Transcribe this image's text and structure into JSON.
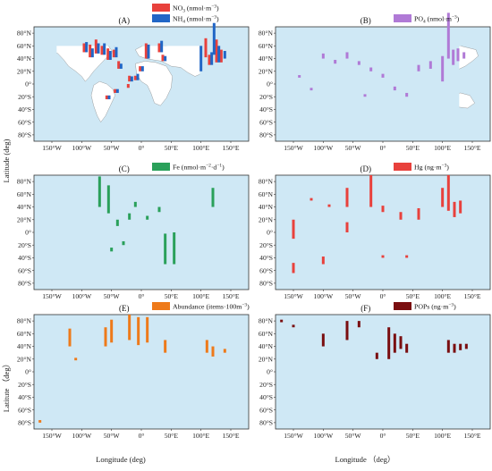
{
  "figure": {
    "y_axis_label": "Latitude (deg)",
    "y_axis_label_bottom": "Latitute （deg）",
    "x_axis_label": "Longitude (deg)",
    "x_axis_label_right": "Longitude （deg）"
  },
  "colors": {
    "ocean": "#cfe8f5",
    "land": "#ffffff",
    "border": "#8a8a8a",
    "frame": "#333333"
  },
  "chart_data": [
    {
      "type": "bar",
      "panel": "(A)",
      "xlim": [
        -180,
        180
      ],
      "ylim": [
        -90,
        90
      ],
      "x_ticks": [
        "150°W",
        "100°W",
        "50°W",
        "0°",
        "50°E",
        "100°E",
        "150°E"
      ],
      "y_ticks": [
        "80°N",
        "60°N",
        "40°N",
        "20°N",
        "0°",
        "20°S",
        "40°S",
        "60°S",
        "80°S"
      ],
      "series": [
        {
          "name": "NO",
          "sub": "3",
          "unit": " (nmol·m",
          "sup": "−3",
          "unit_end": ")",
          "color": "#e8413c",
          "bars": [
            {
              "lon": -96,
              "lat": 50,
              "h": 14
            },
            {
              "lon": -86,
              "lat": 42,
              "h": 20
            },
            {
              "lon": -76,
              "lat": 48,
              "h": 22
            },
            {
              "lon": -66,
              "lat": 46,
              "h": 14
            },
            {
              "lon": -56,
              "lat": 38,
              "h": 18
            },
            {
              "lon": -46,
              "lat": 42,
              "h": 12
            },
            {
              "lon": -38,
              "lat": 24,
              "h": 12
            },
            {
              "lon": -20,
              "lat": 4,
              "h": 9
            },
            {
              "lon": -10,
              "lat": 6,
              "h": 7
            },
            {
              "lon": -2,
              "lat": 20,
              "h": 8
            },
            {
              "lon": 8,
              "lat": 40,
              "h": 24
            },
            {
              "lon": 30,
              "lat": 50,
              "h": 14
            },
            {
              "lon": 36,
              "lat": 36,
              "h": 10
            },
            {
              "lon": 108,
              "lat": 42,
              "h": 30
            },
            {
              "lon": 114,
              "lat": 30,
              "h": 16
            },
            {
              "lon": 126,
              "lat": 34,
              "h": 36
            },
            {
              "lon": 134,
              "lat": 34,
              "h": 20
            },
            {
              "lon": -58,
              "lat": -24,
              "h": 6
            },
            {
              "lon": -44,
              "lat": -14,
              "h": 6
            },
            {
              "lon": -22,
              "lat": -6,
              "h": 6
            }
          ]
        },
        {
          "name": "NH",
          "sub": "4",
          "unit": " (nmol·m",
          "sup": "−3",
          "unit_end": ")",
          "color": "#2166c6",
          "bars": [
            {
              "lon": -92,
              "lat": 50,
              "h": 16
            },
            {
              "lon": -82,
              "lat": 42,
              "h": 14
            },
            {
              "lon": -72,
              "lat": 48,
              "h": 16
            },
            {
              "lon": -62,
              "lat": 46,
              "h": 18
            },
            {
              "lon": -52,
              "lat": 38,
              "h": 14
            },
            {
              "lon": -42,
              "lat": 42,
              "h": 16
            },
            {
              "lon": -34,
              "lat": 24,
              "h": 8
            },
            {
              "lon": -16,
              "lat": 4,
              "h": 8
            },
            {
              "lon": -6,
              "lat": 6,
              "h": 10
            },
            {
              "lon": 2,
              "lat": 20,
              "h": 8
            },
            {
              "lon": 12,
              "lat": 40,
              "h": 22
            },
            {
              "lon": 34,
              "lat": 50,
              "h": 18
            },
            {
              "lon": 40,
              "lat": 36,
              "h": 8
            },
            {
              "lon": 100,
              "lat": 20,
              "h": 40
            },
            {
              "lon": 118,
              "lat": 30,
              "h": 20
            },
            {
              "lon": 122,
              "lat": 46,
              "h": 50
            },
            {
              "lon": 130,
              "lat": 34,
              "h": 26
            },
            {
              "lon": 140,
              "lat": 40,
              "h": 12
            },
            {
              "lon": -54,
              "lat": -24,
              "h": 6
            },
            {
              "lon": -40,
              "lat": -14,
              "h": 6
            }
          ]
        }
      ]
    },
    {
      "type": "bar",
      "panel": "(B)",
      "xlim": [
        -180,
        180
      ],
      "ylim": [
        -90,
        90
      ],
      "x_ticks": [
        "150°W",
        "100°W",
        "50°W",
        "0°",
        "50°E",
        "100°E",
        "150°E"
      ],
      "y_ticks": [
        "80°N",
        "60°N",
        "40°N",
        "20°N",
        "0°",
        "20°S",
        "40°S",
        "60°S",
        "80°S"
      ],
      "series": [
        {
          "name": "PO",
          "sub": "4",
          "unit": " (nmol·m",
          "sup": "−3",
          "unit_end": ")",
          "color": "#b07ad6",
          "bars": [
            {
              "lon": -100,
              "lat": 40,
              "h": 8
            },
            {
              "lon": -80,
              "lat": 32,
              "h": 6
            },
            {
              "lon": -60,
              "lat": 40,
              "h": 10
            },
            {
              "lon": -40,
              "lat": 30,
              "h": 6
            },
            {
              "lon": -20,
              "lat": 20,
              "h": 6
            },
            {
              "lon": 0,
              "lat": 10,
              "h": 6
            },
            {
              "lon": 20,
              "lat": -10,
              "h": 6
            },
            {
              "lon": 40,
              "lat": -20,
              "h": 6
            },
            {
              "lon": 60,
              "lat": 20,
              "h": 10
            },
            {
              "lon": 80,
              "lat": 24,
              "h": 12
            },
            {
              "lon": 100,
              "lat": 4,
              "h": 40
            },
            {
              "lon": 110,
              "lat": 40,
              "h": 72
            },
            {
              "lon": 118,
              "lat": 30,
              "h": 24
            },
            {
              "lon": 126,
              "lat": 36,
              "h": 20
            },
            {
              "lon": 136,
              "lat": 40,
              "h": 10
            },
            {
              "lon": -120,
              "lat": -10,
              "h": 4
            },
            {
              "lon": -140,
              "lat": 10,
              "h": 4
            },
            {
              "lon": -30,
              "lat": -20,
              "h": 4
            }
          ]
        }
      ]
    },
    {
      "type": "bar",
      "panel": "(C)",
      "xlim": [
        -180,
        180
      ],
      "ylim": [
        -90,
        90
      ],
      "x_ticks": [
        "150°W",
        "100°W",
        "50°W",
        "0°",
        "50°E",
        "100°E",
        "150°E"
      ],
      "y_ticks": [
        "80°N",
        "60°N",
        "40°N",
        "20°N",
        "0°",
        "20°S",
        "40°S",
        "60°S",
        "80°S"
      ],
      "series": [
        {
          "name": "Fe",
          "unit": " (nmol·m",
          "sup": "−2",
          "unit_end": "·d",
          "sup2": "−1",
          "unit_end2": ")",
          "color": "#2aa05a",
          "bars": [
            {
              "lon": -70,
              "lat": 40,
              "h": 48
            },
            {
              "lon": -55,
              "lat": 30,
              "h": 44
            },
            {
              "lon": -40,
              "lat": 10,
              "h": 10
            },
            {
              "lon": -20,
              "lat": 20,
              "h": 10
            },
            {
              "lon": -10,
              "lat": 40,
              "h": 8
            },
            {
              "lon": 40,
              "lat": -50,
              "h": 48
            },
            {
              "lon": 55,
              "lat": -50,
              "h": 50
            },
            {
              "lon": 120,
              "lat": 40,
              "h": 30
            },
            {
              "lon": -30,
              "lat": -20,
              "h": 6
            },
            {
              "lon": -50,
              "lat": -30,
              "h": 6
            },
            {
              "lon": 10,
              "lat": 20,
              "h": 6
            },
            {
              "lon": 30,
              "lat": 32,
              "h": 8
            }
          ]
        }
      ]
    },
    {
      "type": "bar",
      "panel": "(D)",
      "xlim": [
        -180,
        180
      ],
      "ylim": [
        -90,
        90
      ],
      "x_ticks": [
        "150°W",
        "100°W",
        "50°W",
        "0°",
        "50°E",
        "100°E",
        "150°E"
      ],
      "y_ticks": [
        "80°N",
        "60°N",
        "40°N",
        "20°N",
        "0°",
        "20°S",
        "40°S",
        "60°S",
        "80°S"
      ],
      "series": [
        {
          "name": "Hg",
          "unit": " (ng·m",
          "sup": "−3",
          "unit_end": ")",
          "color": "#e8413c",
          "bars": [
            {
              "lon": -150,
              "lat": -10,
              "h": 30
            },
            {
              "lon": -150,
              "lat": -64,
              "h": 16
            },
            {
              "lon": -100,
              "lat": -50,
              "h": 12
            },
            {
              "lon": -60,
              "lat": 0,
              "h": 16
            },
            {
              "lon": -60,
              "lat": 40,
              "h": 30
            },
            {
              "lon": -20,
              "lat": 40,
              "h": 50
            },
            {
              "lon": 0,
              "lat": 32,
              "h": 10
            },
            {
              "lon": 30,
              "lat": 20,
              "h": 12
            },
            {
              "lon": 60,
              "lat": 20,
              "h": 18
            },
            {
              "lon": 100,
              "lat": 40,
              "h": 30
            },
            {
              "lon": 110,
              "lat": 34,
              "h": 56
            },
            {
              "lon": 120,
              "lat": 24,
              "h": 24
            },
            {
              "lon": 130,
              "lat": 30,
              "h": 20
            },
            {
              "lon": -120,
              "lat": 50,
              "h": 4
            },
            {
              "lon": -90,
              "lat": 40,
              "h": 4
            },
            {
              "lon": 0,
              "lat": -40,
              "h": 4
            },
            {
              "lon": 40,
              "lat": -40,
              "h": 4
            }
          ]
        }
      ]
    },
    {
      "type": "bar",
      "panel": "(E)",
      "xlim": [
        -180,
        180
      ],
      "ylim": [
        -90,
        90
      ],
      "x_ticks": [
        "150°W",
        "100°W",
        "50°W",
        "0°",
        "50°E",
        "100°E",
        "150°E"
      ],
      "y_ticks": [
        "80°N",
        "60°N",
        "40°N",
        "20°N",
        "0°",
        "20°S",
        "40°S",
        "60°S",
        "80°S"
      ],
      "series": [
        {
          "name": "Abundance",
          "unit": " (items·100m",
          "sup": "−3",
          "unit_end": ")",
          "color": "#ee7a1a",
          "bars": [
            {
              "lon": -120,
              "lat": 40,
              "h": 28
            },
            {
              "lon": -60,
              "lat": 40,
              "h": 30
            },
            {
              "lon": -50,
              "lat": 46,
              "h": 36
            },
            {
              "lon": -20,
              "lat": 50,
              "h": 40
            },
            {
              "lon": -5,
              "lat": 42,
              "h": 44
            },
            {
              "lon": 10,
              "lat": 46,
              "h": 40
            },
            {
              "lon": 40,
              "lat": 30,
              "h": 20
            },
            {
              "lon": 110,
              "lat": 30,
              "h": 20
            },
            {
              "lon": 120,
              "lat": 24,
              "h": 16
            },
            {
              "lon": -110,
              "lat": 18,
              "h": 4
            },
            {
              "lon": -170,
              "lat": -80,
              "h": 4
            },
            {
              "lon": 140,
              "lat": 30,
              "h": 6
            }
          ]
        }
      ]
    },
    {
      "type": "bar",
      "panel": "(F)",
      "xlim": [
        -180,
        180
      ],
      "ylim": [
        -90,
        90
      ],
      "x_ticks": [
        "150°W",
        "100°W",
        "50°W",
        "0°",
        "50°E",
        "100°E",
        "150°E"
      ],
      "y_ticks": [
        "80°N",
        "60°N",
        "40°N",
        "20°N",
        "0°",
        "20°S",
        "40°S",
        "60°S",
        "80°S"
      ],
      "series": [
        {
          "name": "POPs",
          "unit": " (ng·m",
          "sup": "−3",
          "unit_end": ")",
          "color": "#7a0e10",
          "bars": [
            {
              "lon": -100,
              "lat": 40,
              "h": 20
            },
            {
              "lon": -60,
              "lat": 50,
              "h": 30
            },
            {
              "lon": -10,
              "lat": 20,
              "h": 10
            },
            {
              "lon": 10,
              "lat": 20,
              "h": 50
            },
            {
              "lon": 20,
              "lat": 30,
              "h": 30
            },
            {
              "lon": 30,
              "lat": 36,
              "h": 20
            },
            {
              "lon": 40,
              "lat": 30,
              "h": 14
            },
            {
              "lon": 110,
              "lat": 30,
              "h": 20
            },
            {
              "lon": 120,
              "lat": 30,
              "h": 14
            },
            {
              "lon": -170,
              "lat": 78,
              "h": 4
            },
            {
              "lon": -150,
              "lat": 70,
              "h": 4
            },
            {
              "lon": -40,
              "lat": 70,
              "h": 10
            },
            {
              "lon": 130,
              "lat": 34,
              "h": 10
            },
            {
              "lon": 140,
              "lat": 36,
              "h": 8
            }
          ]
        }
      ]
    }
  ]
}
